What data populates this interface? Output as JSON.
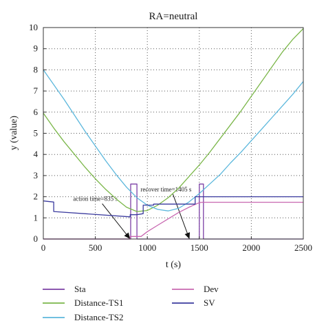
{
  "chart_data": {
    "type": "line",
    "title": "RA=neutral",
    "xlabel": "t (s)",
    "ylabel": "y (value)",
    "xlim": [
      0,
      2500
    ],
    "ylim": [
      0,
      10
    ],
    "xticks": [
      0,
      500,
      1000,
      1500,
      2000,
      2500
    ],
    "yticks": [
      0,
      1,
      2,
      3,
      4,
      5,
      6,
      7,
      8,
      9,
      10
    ],
    "grid": "dotted",
    "legend": "bottom",
    "series": [
      {
        "name": "Sta",
        "color": "#7b3fa5",
        "x": [
          0,
          840,
          840,
          900,
          900,
          1500,
          1500,
          1540,
          1540,
          2500
        ],
        "y": [
          0,
          0,
          2.6,
          2.6,
          0,
          0,
          2.6,
          2.6,
          0,
          0
        ]
      },
      {
        "name": "Distance-TS1",
        "color": "#7ab648",
        "x": [
          0,
          100,
          200,
          300,
          400,
          500,
          600,
          700,
          800,
          900,
          1000,
          1100,
          1200,
          1300,
          1400,
          1500,
          1600,
          1700,
          1800,
          1900,
          2000,
          2100,
          2200,
          2300,
          2400,
          2500
        ],
        "y": [
          5.95,
          5.25,
          4.6,
          4.0,
          3.4,
          2.85,
          2.35,
          1.9,
          1.5,
          1.3,
          1.35,
          1.6,
          1.95,
          2.4,
          2.95,
          3.5,
          4.1,
          4.75,
          5.4,
          6.05,
          6.75,
          7.45,
          8.15,
          8.85,
          9.45,
          9.95
        ]
      },
      {
        "name": "Distance-TS2",
        "color": "#5bb7dc",
        "x": [
          0,
          100,
          200,
          300,
          400,
          500,
          600,
          700,
          800,
          900,
          1000,
          1100,
          1200,
          1300,
          1400,
          1500,
          1600,
          1700,
          1800,
          1900,
          2000,
          2100,
          2200,
          2300,
          2400,
          2500
        ],
        "y": [
          8.0,
          7.3,
          6.6,
          5.85,
          5.1,
          4.4,
          3.7,
          3.05,
          2.45,
          1.95,
          1.6,
          1.4,
          1.33,
          1.45,
          1.75,
          2.15,
          2.6,
          3.05,
          3.6,
          4.1,
          4.65,
          5.2,
          5.75,
          6.3,
          6.85,
          7.45
        ]
      },
      {
        "name": "Dev",
        "color": "#c867b0",
        "x": [
          0,
          835,
          835,
          900,
          940,
          1000,
          1100,
          1200,
          1300,
          1400,
          1500,
          1530,
          2500
        ],
        "y": [
          0,
          0,
          0.12,
          0.12,
          0.12,
          0.35,
          0.65,
          0.95,
          1.25,
          1.5,
          1.72,
          1.74,
          1.74
        ]
      },
      {
        "name": "SV",
        "color": "#3a3a9e",
        "x": [
          0,
          100,
          100,
          835,
          835,
          900,
          960,
          960,
          1060,
          1060,
          1460,
          1460,
          2500
        ],
        "y": [
          1.8,
          1.75,
          1.3,
          1.05,
          1.15,
          1.15,
          1.2,
          1.6,
          1.6,
          1.65,
          1.65,
          2.0,
          2.0
        ]
      }
    ],
    "annotations": [
      {
        "text": "action time=835 s",
        "x_text": 500,
        "y_text": 1.8,
        "arrow_to_x": 835,
        "arrow_to_y": 0
      },
      {
        "text": "recover time=1405 s",
        "x_text": 1180,
        "y_text": 2.25,
        "arrow_to_x": 1405,
        "arrow_to_y": 0
      }
    ]
  }
}
